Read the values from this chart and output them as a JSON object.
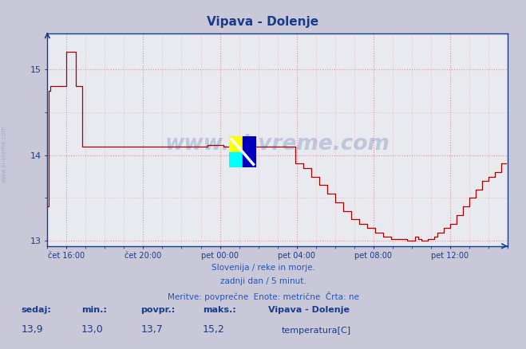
{
  "title": "Vipava - Dolenje",
  "title_color": "#1a3a8c",
  "bg_color": "#c8c8d8",
  "plot_bg_color": "#e8eaf0",
  "line_color": "#aa0000",
  "grid_color": "#dd8888",
  "axis_color": "#1a3a8c",
  "ylim": [
    12.94,
    15.42
  ],
  "yticks": [
    13,
    14,
    15
  ],
  "xtick_labels": [
    "čet 16:00",
    "čet 20:00",
    "pet 00:00",
    "pet 04:00",
    "pet 08:00",
    "pet 12:00"
  ],
  "n_points": 288,
  "footer_color": "#2255bb",
  "footer_lines": [
    "Slovenija / reke in morje.",
    "zadnji dan / 5 minut.",
    "Meritve: povprečne  Enote: metrične  Črta: ne"
  ],
  "stats_labels": [
    "sedaj:",
    "min.:",
    "povpr.:",
    "maks.:"
  ],
  "stats_values": [
    "13,9",
    "13,0",
    "13,7",
    "15,2"
  ],
  "legend_name": "Vipava - Dolenje",
  "legend_label": "temperatura[C]",
  "legend_color": "#aa0000",
  "watermark_text": "www.si-vreme.com",
  "watermark_color": "#1a3a8c",
  "watermark_alpha": 0.2,
  "sidebar_text": "www.si-vreme.com",
  "sidebar_color": "#1a3a8c",
  "sidebar_alpha": 0.2
}
